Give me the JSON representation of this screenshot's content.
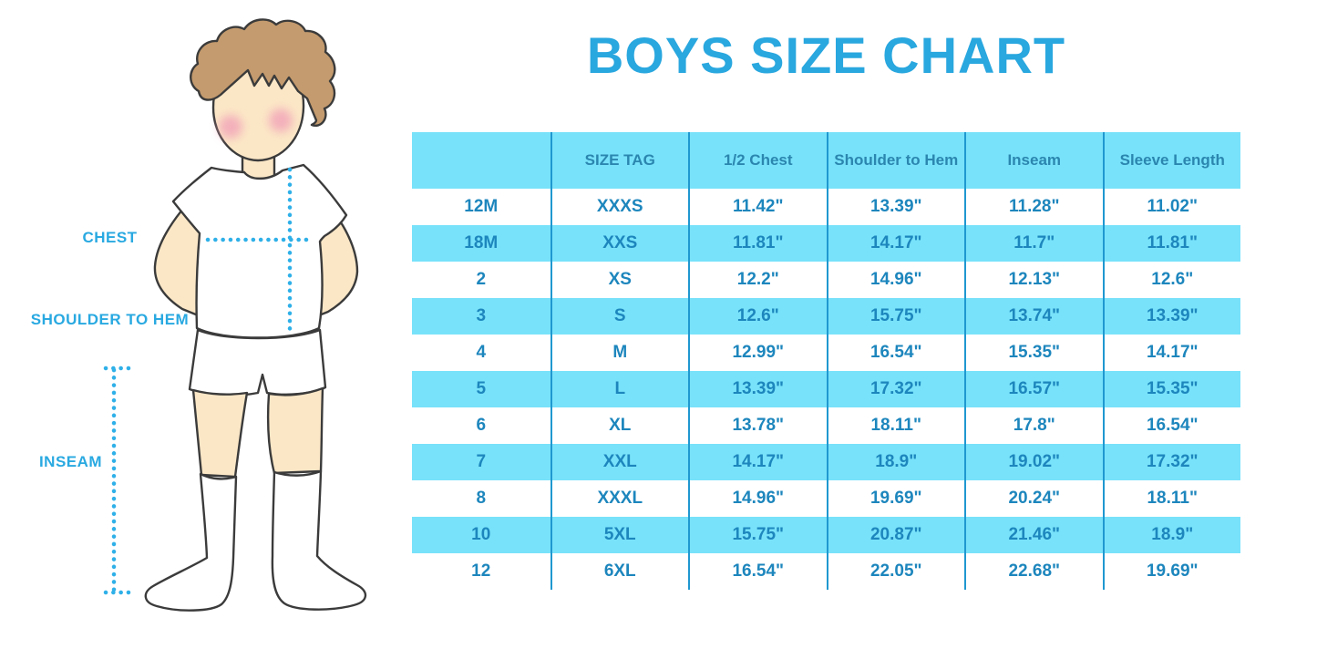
{
  "title": "BOYS SIZE CHART",
  "figure": {
    "illustration": "boy-in-white-tshirt-shorts-and-socks",
    "labels": [
      {
        "id": "chest",
        "text": "CHEST"
      },
      {
        "id": "shoulder-to-hem",
        "text": "SHOULDER TO HEM"
      },
      {
        "id": "inseam",
        "text": "INSEAM"
      }
    ]
  },
  "colors": {
    "title_blue": "#29a7df",
    "table_fill_light_blue": "#78e2fa",
    "table_divider_blue": "#1f98d0",
    "table_text_blue": "#1d86bd",
    "header_text_blue": "#2b86af",
    "label_blue": "#29a9e1",
    "dotted_line_cyan": "#2fb0e8",
    "hair_brown": "#c49b6e",
    "skin": "#fbe7c6",
    "cheek_pink": "#f2a3b8",
    "outline": "#3b3b3b"
  },
  "chart_data": {
    "type": "table",
    "title": "BOYS SIZE CHART",
    "columns": [
      "",
      "SIZE TAG",
      "1/2 Chest",
      "Shoulder to Hem",
      "Inseam",
      "Sleeve Length"
    ],
    "rows": [
      [
        "12M",
        "XXXS",
        "11.42\"",
        "13.39\"",
        "11.28\"",
        "11.02\""
      ],
      [
        "18M",
        "XXS",
        "11.81\"",
        "14.17\"",
        "11.7\"",
        "11.81\""
      ],
      [
        "2",
        "XS",
        "12.2\"",
        "14.96\"",
        "12.13\"",
        "12.6\""
      ],
      [
        "3",
        "S",
        "12.6\"",
        "15.75\"",
        "13.74\"",
        "13.39\""
      ],
      [
        "4",
        "M",
        "12.99\"",
        "16.54\"",
        "15.35\"",
        "14.17\""
      ],
      [
        "5",
        "L",
        "13.39\"",
        "17.32\"",
        "16.57\"",
        "15.35\""
      ],
      [
        "6",
        "XL",
        "13.78\"",
        "18.11\"",
        "17.8\"",
        "16.54\""
      ],
      [
        "7",
        "XXL",
        "14.17\"",
        "18.9\"",
        "19.02\"",
        "17.32\""
      ],
      [
        "8",
        "XXXL",
        "14.96\"",
        "19.69\"",
        "20.24\"",
        "18.11\""
      ],
      [
        "10",
        "5XL",
        "15.75\"",
        "20.87\"",
        "21.46\"",
        "18.9\""
      ],
      [
        "12",
        "6XL",
        "16.54\"",
        "22.05\"",
        "22.68\"",
        "19.69\""
      ]
    ],
    "row_striping": "white and light blue alternating, header light blue",
    "units": "inches"
  }
}
